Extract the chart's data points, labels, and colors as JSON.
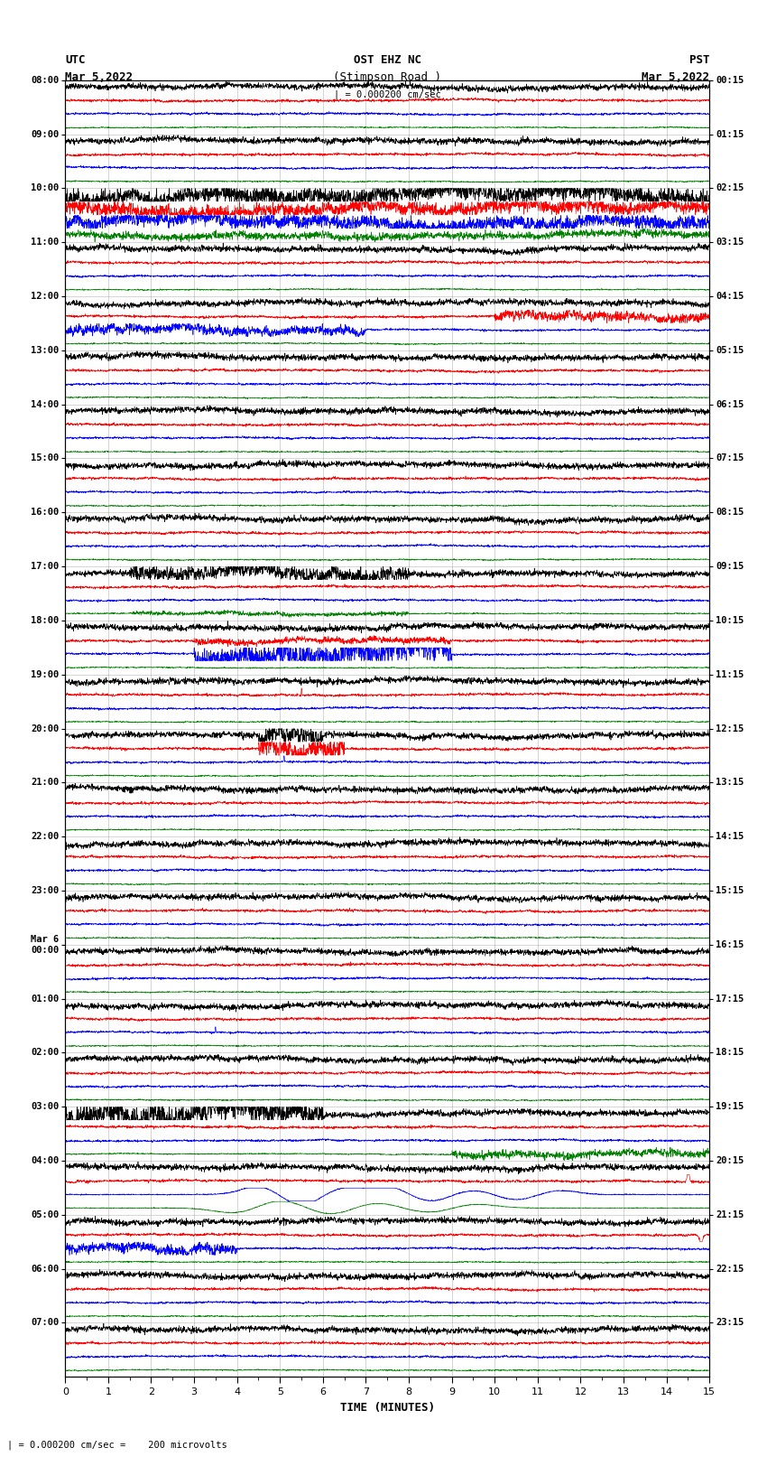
{
  "title_line1": "OST EHZ NC",
  "title_line2": "(Stimpson Road )",
  "scale_label": "| = 0.000200 cm/sec",
  "left_header_line1": "UTC",
  "left_header_line2": "Mar 5,2022",
  "right_header_line1": "PST",
  "right_header_line2": "Mar 5,2022",
  "xlabel": "TIME (MINUTES)",
  "footnote": "| = 0.000200 cm/sec =    200 microvolts",
  "utc_labels": [
    "08:00",
    "09:00",
    "10:00",
    "11:00",
    "12:00",
    "13:00",
    "14:00",
    "15:00",
    "16:00",
    "17:00",
    "18:00",
    "19:00",
    "20:00",
    "21:00",
    "22:00",
    "23:00",
    "Mar 6\n00:00",
    "01:00",
    "02:00",
    "03:00",
    "04:00",
    "05:00",
    "06:00",
    "07:00"
  ],
  "pst_labels": [
    "00:15",
    "01:15",
    "02:15",
    "03:15",
    "04:15",
    "05:15",
    "06:15",
    "07:15",
    "08:15",
    "09:15",
    "10:15",
    "11:15",
    "12:15",
    "13:15",
    "14:15",
    "15:15",
    "16:15",
    "17:15",
    "18:15",
    "19:15",
    "20:15",
    "21:15",
    "22:15",
    "23:15"
  ],
  "n_rows": 24,
  "n_minutes": 15,
  "bg_color": "#ffffff",
  "trace_colors": [
    "black",
    "red",
    "blue",
    "green"
  ],
  "grid_color": "#888888",
  "vgrid_color": "#888888"
}
